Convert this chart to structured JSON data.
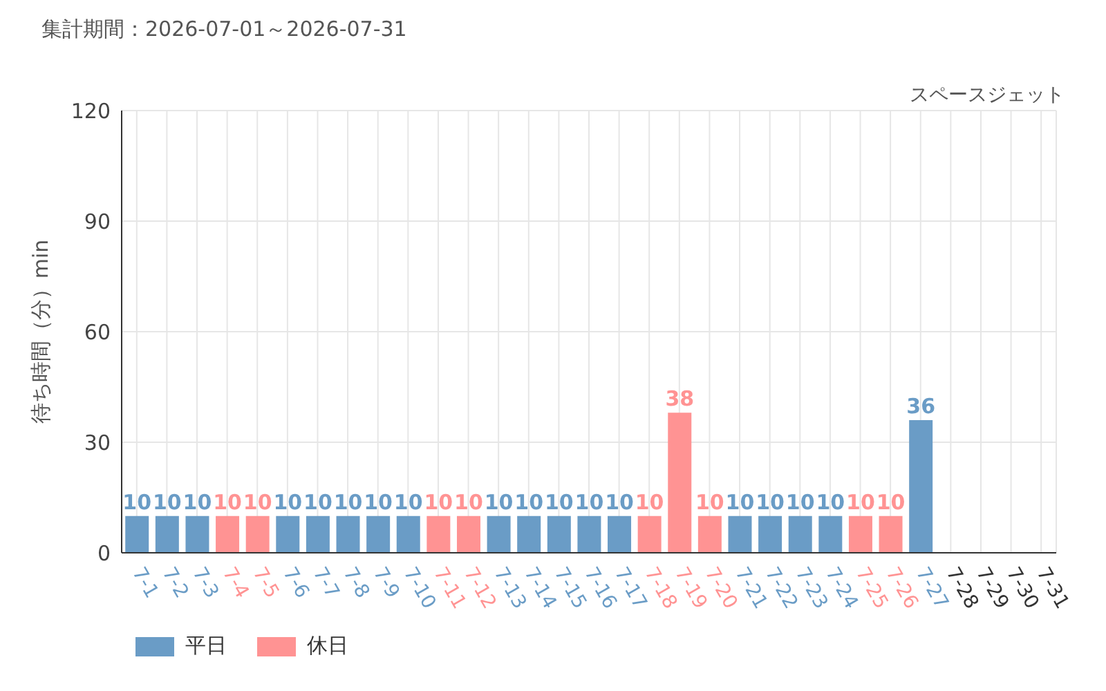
{
  "chart_data": {
    "type": "bar",
    "title": "集計期間：2026-07-01～2026-07-31",
    "ylabel": "待ち時間（分）min",
    "annotations": [
      "スペースジェット"
    ],
    "categories": [
      "7-1",
      "7-2",
      "7-3",
      "7-4",
      "7-5",
      "7-6",
      "7-7",
      "7-8",
      "7-9",
      "7-10",
      "7-11",
      "7-12",
      "7-13",
      "7-14",
      "7-15",
      "7-16",
      "7-17",
      "7-18",
      "7-19",
      "7-20",
      "7-21",
      "7-22",
      "7-23",
      "7-24",
      "7-25",
      "7-26",
      "7-27",
      "7-28",
      "7-29",
      "7-30",
      "7-31"
    ],
    "series": [
      {
        "name": "平日",
        "color": "#6a9cc6",
        "values": [
          10,
          10,
          10,
          null,
          null,
          10,
          10,
          10,
          10,
          10,
          null,
          null,
          10,
          10,
          10,
          10,
          10,
          null,
          null,
          null,
          10,
          10,
          10,
          10,
          null,
          null,
          36,
          null,
          null,
          null,
          null
        ]
      },
      {
        "name": "休日",
        "color": "#ff9393",
        "values": [
          null,
          null,
          null,
          10,
          10,
          null,
          null,
          null,
          null,
          null,
          10,
          10,
          null,
          null,
          null,
          null,
          null,
          10,
          38,
          10,
          null,
          null,
          null,
          null,
          10,
          10,
          null,
          null,
          null,
          null,
          null
        ]
      }
    ],
    "stacked": true,
    "ylim": [
      0,
      120
    ],
    "yticks": [
      0,
      30,
      60,
      90,
      120
    ],
    "grid": true,
    "legend": "bottom left",
    "data_labels": true
  }
}
